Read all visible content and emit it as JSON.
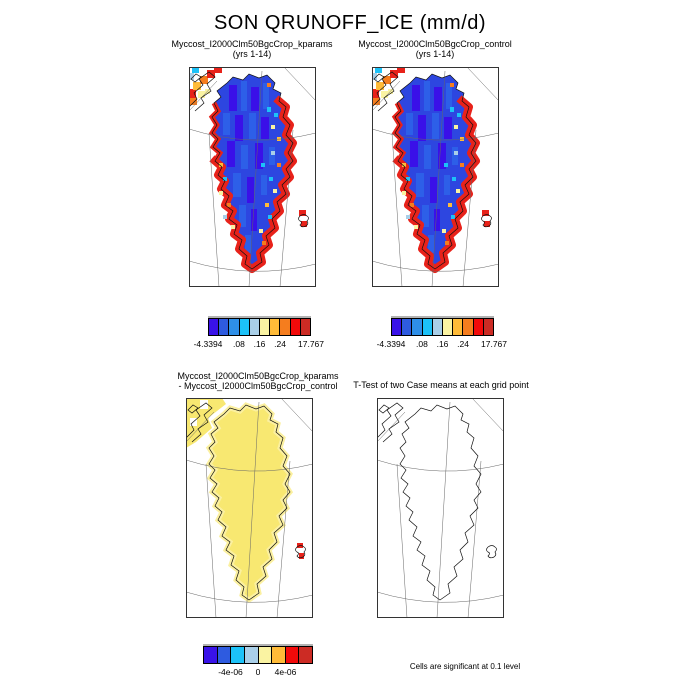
{
  "figure": {
    "title": "SON QRUNOFF_ICE (mm/d)",
    "note": "Cells are significant at 0.1 level"
  },
  "panels": {
    "top_left": {
      "title": "Myccost_I2000Clm50BgcCrop_kparams",
      "subtitle": "(yrs 1-14)"
    },
    "top_right": {
      "title": "Myccost_I2000Clm50BgcCrop_control",
      "subtitle": "(yrs 1-14)"
    },
    "bottom_left": {
      "title_line1": "Myccost_I2000Clm50BgcCrop_kparams",
      "title_line2": "- Myccost_I2000Clm50BgcCrop_control"
    },
    "bottom_right": {
      "title": "T-Test of two Case means at each grid point"
    }
  },
  "colorbars": {
    "runoff": {
      "colors": [
        "#3912E8",
        "#2E5BE0",
        "#2E8FE8",
        "#1CC2F8",
        "#A9CFE8",
        "#FAF3A2",
        "#FFBB38",
        "#F57D1E",
        "#F20A0A",
        "#CC2B24"
      ],
      "labels": [
        "-4.3394",
        ".08",
        ".16",
        ".24",
        "17.767"
      ]
    },
    "difference": {
      "colors": [
        "#3912E8",
        "#2E5BE0",
        "#1CC2F8",
        "#A9CFE8",
        "#FAF3A2",
        "#FFBB38",
        "#F20A0A",
        "#CC2B24"
      ],
      "labels": [
        "-4e-06",
        "0",
        "4e-06"
      ]
    }
  },
  "chart_data": [
    {
      "type": "heatmap",
      "title": "Myccost_I2000Clm50BgcCrop_kparams (yrs 1-14)",
      "variable": "QRUNOFF_ICE",
      "season": "SON",
      "units": "mm/d",
      "region": "Greenland and surroundings (polar map)",
      "value_min": -4.3394,
      "value_max": 17.767,
      "colorbar_tick_labels": [
        "-4.3394",
        ".08",
        ".16",
        ".24",
        "17.767"
      ],
      "n_color_bins": 10,
      "pattern": "Ice-sheet interior mostly low values (dark/medium blue, < 0.08 mm/d); coastal margins, south and southeast Greenland high values (red, > 0.24 mm/d); scattered yellow/orange transition cells along margins; red/orange band over Canadian Arctic islands in upper-left; small red cells at Iceland on right edge"
    },
    {
      "type": "heatmap",
      "title": "Myccost_I2000Clm50BgcCrop_control (yrs 1-14)",
      "variable": "QRUNOFF_ICE",
      "season": "SON",
      "units": "mm/d",
      "region": "Greenland and surroundings (polar map)",
      "value_min": -4.3394,
      "value_max": 17.767,
      "colorbar_tick_labels": [
        "-4.3394",
        ".08",
        ".16",
        ".24",
        "17.767"
      ],
      "n_color_bins": 10,
      "pattern": "Nearly identical to kparams case: blue interior, red margins, orange band over Canadian Arctic, red cells at Iceland"
    },
    {
      "type": "heatmap",
      "title": "Myccost_I2000Clm50BgcCrop_kparams - Myccost_I2000Clm50BgcCrop_control",
      "variable": "QRUNOFF_ICE difference",
      "units": "mm/d",
      "colorbar_tick_labels": [
        "-4e-06",
        "0",
        "4e-06"
      ],
      "n_color_bins": 8,
      "pattern": "Difference essentially zero (pale-yellow bin, 0 to +2e-06) over all of Greenland and the Canadian Arctic cells; two small positive (red) cells near Iceland"
    },
    {
      "type": "map",
      "title": "T-Test of two Case means at each grid point",
      "pattern": "Blank outline map: no grid cells shaded, i.e. no cells significant at the 0.1 level",
      "note": "Cells are significant at 0.1 level"
    }
  ]
}
